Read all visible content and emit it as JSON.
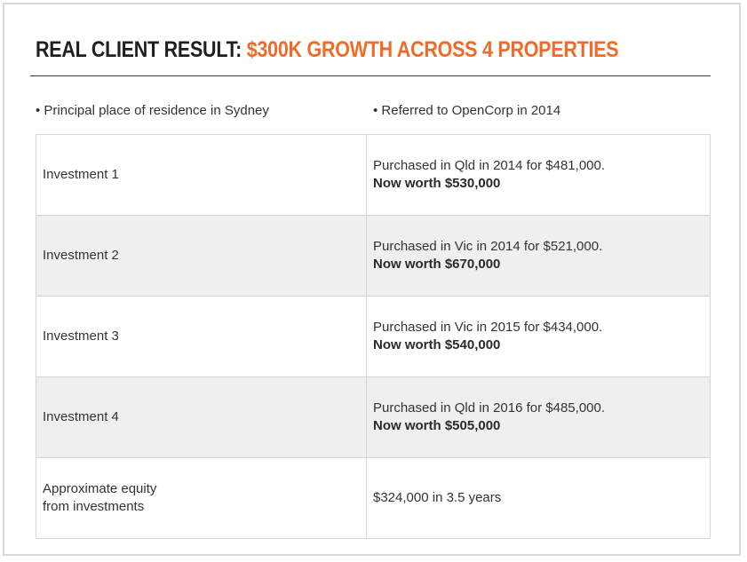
{
  "title": {
    "lead": "REAL CLIENT RESULT: ",
    "accent": "$300K GROWTH ACROSS 4 PROPERTIES"
  },
  "notes": {
    "left": "• Principal place of residence in Sydney",
    "right": "• Referred to OpenCorp in 2014"
  },
  "rows": [
    {
      "label": "Investment 1",
      "purchase": "Purchased in Qld in 2014 for $481,000.",
      "worth": "Now worth $530,000"
    },
    {
      "label": "Investment 2",
      "purchase": "Purchased in Vic in 2014 for $521,000.",
      "worth": "Now worth $670,000"
    },
    {
      "label": "Investment 3",
      "purchase": "Purchased in Vic in 2015 for $434,000.",
      "worth": "Now worth $540,000"
    },
    {
      "label": "Investment 4",
      "purchase": "Purchased in Qld in 2016 for $485,000.",
      "worth": "Now worth $505,000"
    }
  ],
  "equity": {
    "label_line1": "Approximate equity",
    "label_line2": "from investments",
    "value": "$324,000 in 3.5 years"
  },
  "colors": {
    "accent": "#ef6b2a",
    "row_shade": "#efefef",
    "border": "#d6d6d6"
  }
}
